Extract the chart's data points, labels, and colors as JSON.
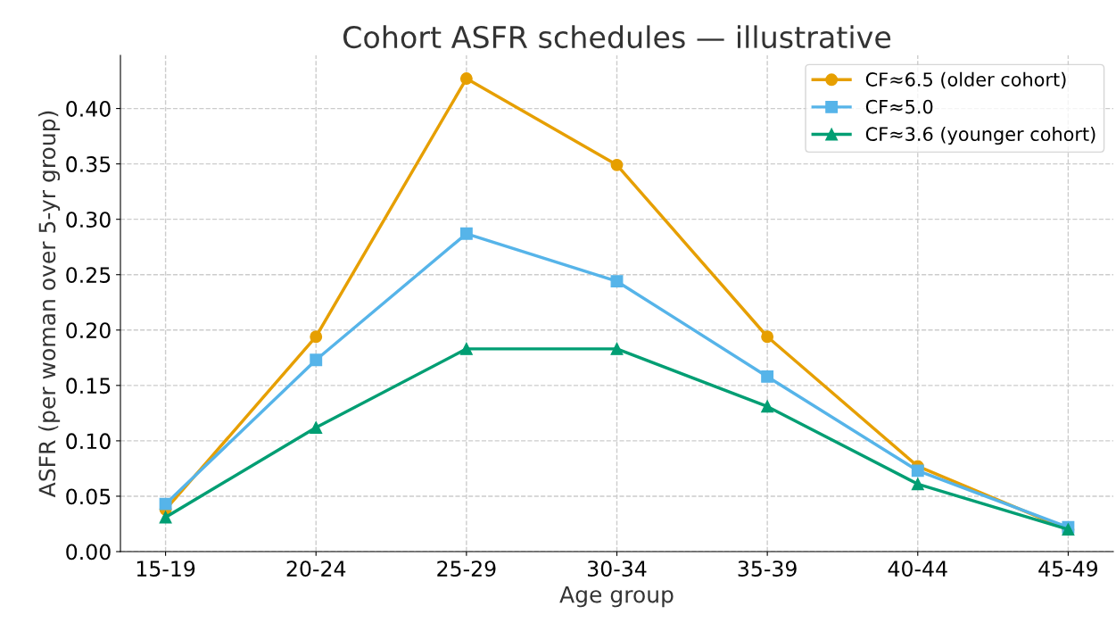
{
  "chart_data": {
    "type": "line",
    "title": "Cohort ASFR schedules — illustrative",
    "xlabel": "Age group",
    "ylabel": "ASFR (per woman over 5-yr group)",
    "categories": [
      "15-19",
      "20-24",
      "25-29",
      "30-34",
      "35-39",
      "40-44",
      "45-49"
    ],
    "series": [
      {
        "name": "CF≈6.5 (older cohort)",
        "color": "#e69f00",
        "marker": "circle",
        "values": [
          0.038,
          0.194,
          0.427,
          0.349,
          0.194,
          0.077,
          0.02
        ]
      },
      {
        "name": "CF≈5.0",
        "color": "#56b4e9",
        "marker": "square",
        "values": [
          0.043,
          0.173,
          0.287,
          0.244,
          0.158,
          0.073,
          0.022
        ]
      },
      {
        "name": "CF≈3.6 (younger cohort)",
        "color": "#009e73",
        "marker": "triangle",
        "values": [
          0.031,
          0.112,
          0.183,
          0.183,
          0.131,
          0.061,
          0.02
        ]
      }
    ],
    "ylim": [
      0,
      0.448
    ],
    "yticks": [
      {
        "value": 0,
        "label": "0.00"
      },
      {
        "value": 0.05,
        "label": "0.05"
      },
      {
        "value": 0.1,
        "label": "0.10"
      },
      {
        "value": 0.15,
        "label": "0.15"
      },
      {
        "value": 0.2,
        "label": "0.20"
      },
      {
        "value": 0.25,
        "label": "0.25"
      },
      {
        "value": 0.3,
        "label": "0.30"
      },
      {
        "value": 0.35,
        "label": "0.35"
      },
      {
        "value": 0.4,
        "label": "0.40"
      }
    ],
    "grid": true,
    "legend": "top right",
    "line_style": "solid"
  }
}
